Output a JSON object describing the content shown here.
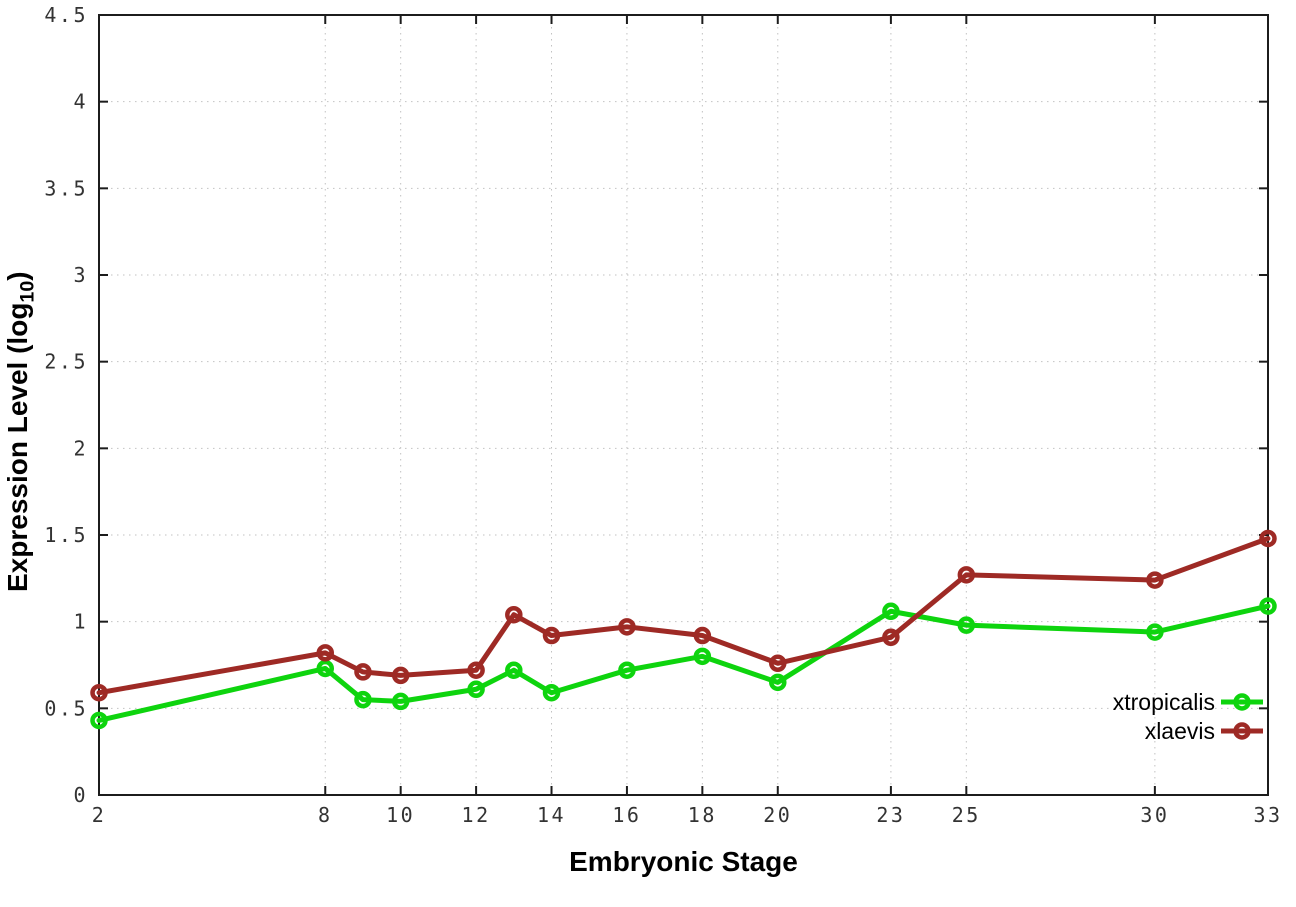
{
  "chart_data": {
    "type": "line",
    "title": "",
    "xlabel": "Embryonic Stage",
    "ylabel": "Expression Level (log10)",
    "ylabel_parts": {
      "prefix": "Expression Level (log",
      "sub": "10",
      "suffix": ")"
    },
    "x": [
      2,
      8,
      9,
      10,
      12,
      13,
      14,
      16,
      18,
      20,
      23,
      25,
      30,
      33
    ],
    "series": [
      {
        "name": "xtropicalis",
        "color": "#0ed40e",
        "marker": "open-circle",
        "values": [
          0.43,
          0.73,
          0.55,
          0.54,
          0.61,
          0.72,
          0.59,
          0.72,
          0.8,
          0.65,
          1.06,
          0.98,
          0.94,
          1.09
        ]
      },
      {
        "name": "xlaevis",
        "color": "#9e2a25",
        "marker": "open-circle",
        "values": [
          0.59,
          0.82,
          0.71,
          0.69,
          0.72,
          1.04,
          0.92,
          0.97,
          0.92,
          0.76,
          0.91,
          1.27,
          1.24,
          1.48
        ]
      }
    ],
    "xlim": [
      2,
      33
    ],
    "ylim": [
      0,
      4.5
    ],
    "xticks": {
      "values": [
        2,
        8,
        10,
        12,
        14,
        16,
        18,
        20,
        23,
        25,
        30,
        33
      ],
      "labels": [
        "2",
        "8",
        "10",
        "12",
        "14",
        "16",
        "18",
        "20",
        "23",
        "25",
        "30",
        "33"
      ]
    },
    "yticks": {
      "values": [
        0,
        0.5,
        1,
        1.5,
        2,
        2.5,
        3,
        3.5,
        4,
        4.5
      ],
      "labels": [
        "0",
        "0.5",
        "1",
        "1.5",
        "2",
        "2.5",
        "3",
        "3.5",
        "4",
        "4.5"
      ]
    },
    "grid": "dotted",
    "legend": {
      "position": "inside-bottom-right"
    },
    "colors": {
      "axis": "#1c1c1c",
      "grid": "#c2c2c2",
      "tick_label": "#333333",
      "title": "#000000",
      "background": "#ffffff"
    }
  }
}
